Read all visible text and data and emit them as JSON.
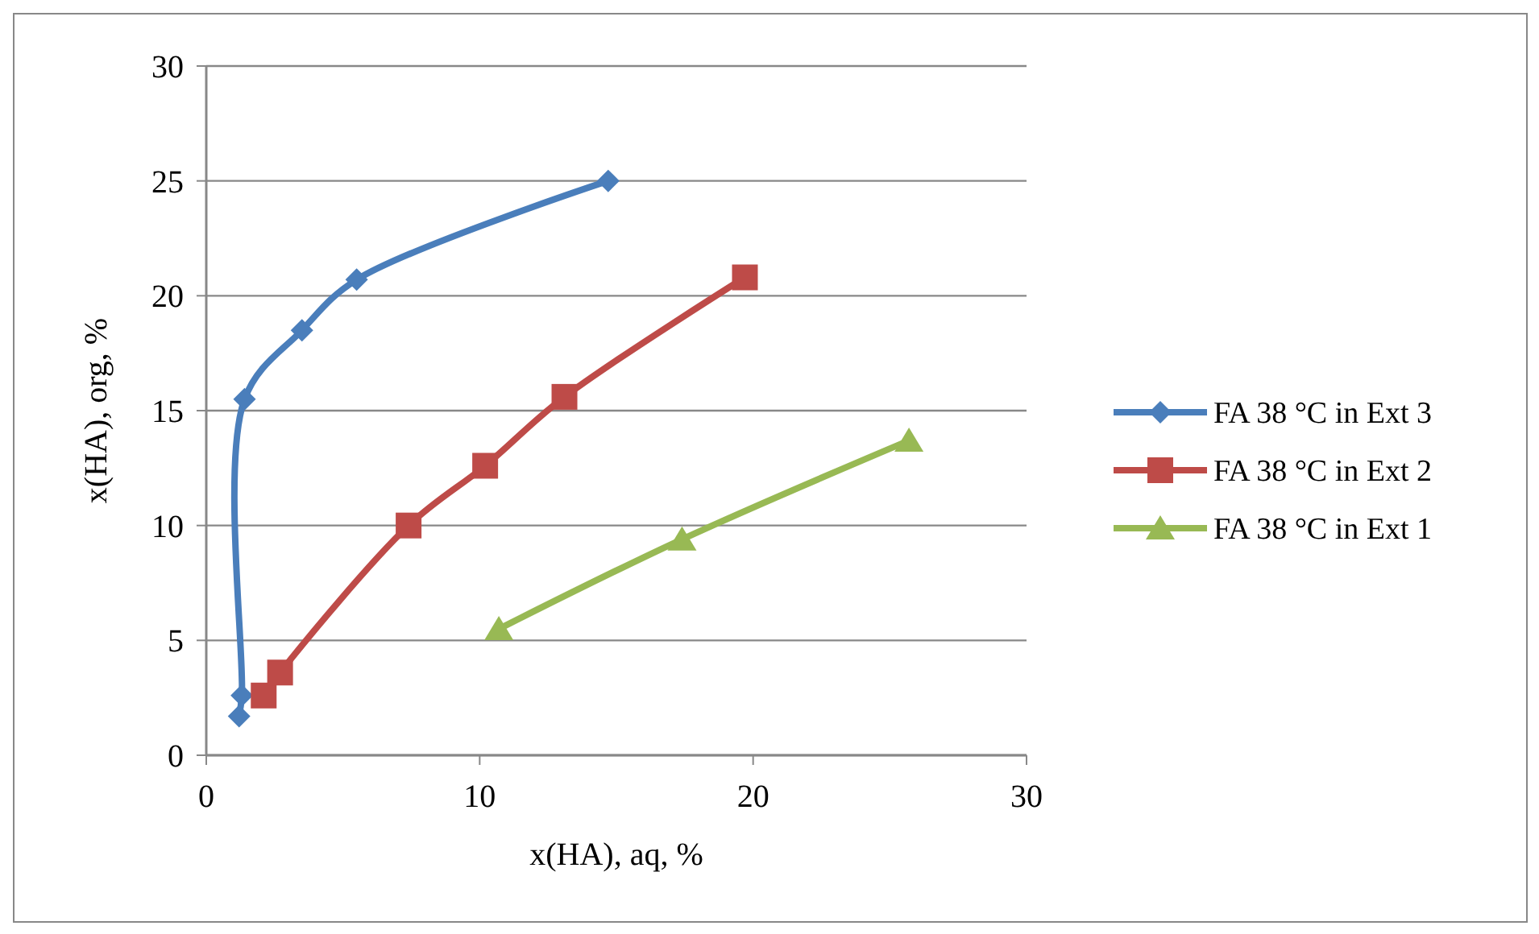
{
  "chart_data": {
    "type": "line",
    "xlabel": "x(HA), aq, %",
    "ylabel": "x(HA), org, %",
    "xlim": [
      0,
      30
    ],
    "xticks": [
      0,
      10,
      20,
      30
    ],
    "ylim": [
      0,
      30
    ],
    "yticks": [
      0,
      5,
      10,
      15,
      20,
      25,
      30
    ],
    "grid": "y",
    "legend": "right",
    "series": [
      {
        "name": "FA 38 °C in Ext 3",
        "color": "#4a7ebb",
        "marker": "diamond",
        "x": [
          1.2,
          1.3,
          1.4,
          3.5,
          5.5,
          14.7
        ],
        "values": [
          1.7,
          2.6,
          15.5,
          18.5,
          20.7,
          25
        ]
      },
      {
        "name": "FA 38 °C in Ext 2",
        "color": "#be4b48",
        "marker": "square",
        "x": [
          2.1,
          2.7,
          7.4,
          10.2,
          13.1,
          19.7
        ],
        "values": [
          2.6,
          3.6,
          10,
          12.6,
          15.6,
          20.8
        ]
      },
      {
        "name": "FA 38 °C in Ext 1",
        "color": "#98b954",
        "marker": "triangle",
        "x": [
          10.7,
          17.4,
          25.7
        ],
        "values": [
          5.5,
          9.4,
          13.7
        ]
      }
    ]
  }
}
